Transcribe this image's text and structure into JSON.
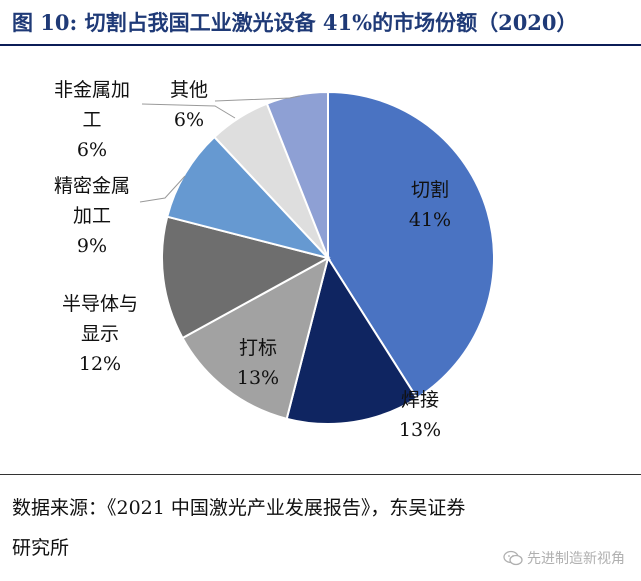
{
  "header": {
    "title": "图 10: 切割占我国工业激光设备 41%的市场份额（2020）"
  },
  "chart_data": {
    "type": "pie",
    "title": "",
    "slices": [
      {
        "label_lines": [
          "切割"
        ],
        "value": 41,
        "value_label": "41%",
        "color": "#4a73c2"
      },
      {
        "label_lines": [
          "焊接"
        ],
        "value": 13,
        "value_label": "13%",
        "color": "#0f2561"
      },
      {
        "label_lines": [
          "打标"
        ],
        "value": 13,
        "value_label": "13%",
        "color": "#a2a2a2"
      },
      {
        "label_lines": [
          "半导体与",
          "显示"
        ],
        "value": 12,
        "value_label": "12%",
        "color": "#6e6e6e"
      },
      {
        "label_lines": [
          "精密金属",
          "加工"
        ],
        "value": 9,
        "value_label": "9%",
        "color": "#6699d1"
      },
      {
        "label_lines": [
          "非金属加",
          "工"
        ],
        "value": 6,
        "value_label": "6%",
        "color": "#dedede"
      },
      {
        "label_lines": [
          "其他"
        ],
        "value": 6,
        "value_label": "6%",
        "color": "#8ea0d4"
      }
    ]
  },
  "footer": {
    "source_lines": [
      "数据来源：《2021 中国激光产业发展报告》，东吴证券",
      "研究所"
    ],
    "watermark": "先进制造新视角"
  }
}
